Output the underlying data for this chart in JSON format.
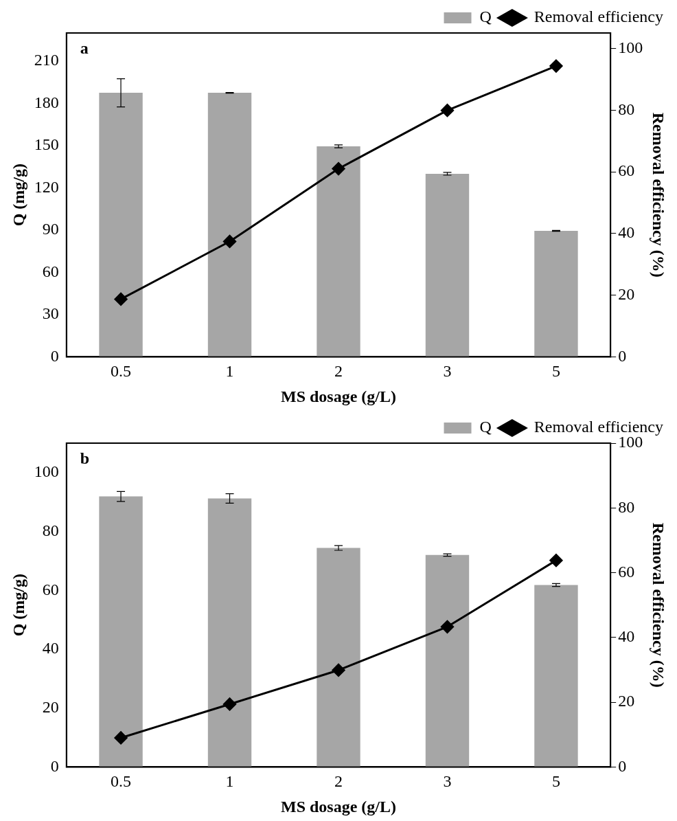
{
  "chart_data": [
    {
      "type": "bar",
      "annotations": [
        "a"
      ],
      "categories": [
        "0.5",
        "1",
        "2",
        "3",
        "5"
      ],
      "xlabel": "MS dosage (g/L)",
      "ylabel": "Q (mg/g)",
      "y2label": "Removal efficiency (%)",
      "ylim": [
        0,
        230
      ],
      "yticks": [
        0,
        30,
        60,
        90,
        120,
        150,
        180,
        210
      ],
      "y2lim": [
        0,
        105
      ],
      "y2ticks": [
        0,
        20,
        40,
        60,
        80,
        100
      ],
      "legend": "top right",
      "grid": false,
      "series": [
        {
          "name": "Q",
          "color": "#a6a6a6",
          "values": [
            187.5,
            187.5,
            149.5,
            130,
            89.5
          ],
          "errors": [
            10,
            0.3,
            1,
            1,
            0.3
          ]
        },
        {
          "name": "Removal efficiency",
          "type": "line",
          "axis": "y2",
          "color": "#000000",
          "marker": "diamond",
          "values": [
            18.7,
            37.4,
            61,
            79.9,
            94.3
          ]
        }
      ]
    },
    {
      "type": "bar",
      "annotations": [
        "b"
      ],
      "categories": [
        "0.5",
        "1",
        "2",
        "3",
        "5"
      ],
      "xlabel": "MS dosage (g/L)",
      "ylabel": "Q (mg/g)",
      "y2label": "Removal efficiency (%)",
      "ylim": [
        0,
        110
      ],
      "yticks": [
        0,
        20,
        40,
        60,
        80,
        100
      ],
      "y2lim": [
        0,
        100
      ],
      "y2ticks": [
        0,
        20,
        40,
        60,
        80,
        100
      ],
      "legend": "top right",
      "grid": false,
      "series": [
        {
          "name": "Q",
          "color": "#a6a6a6",
          "values": [
            91.9,
            91.2,
            74.4,
            72,
            61.8
          ],
          "errors": [
            1.7,
            1.6,
            0.8,
            0.4,
            0.5
          ]
        },
        {
          "name": "Removal efficiency",
          "type": "line",
          "axis": "y2",
          "color": "#000000",
          "marker": "diamond",
          "values": [
            9,
            19.4,
            29.9,
            43.3,
            63.8
          ]
        }
      ]
    }
  ]
}
